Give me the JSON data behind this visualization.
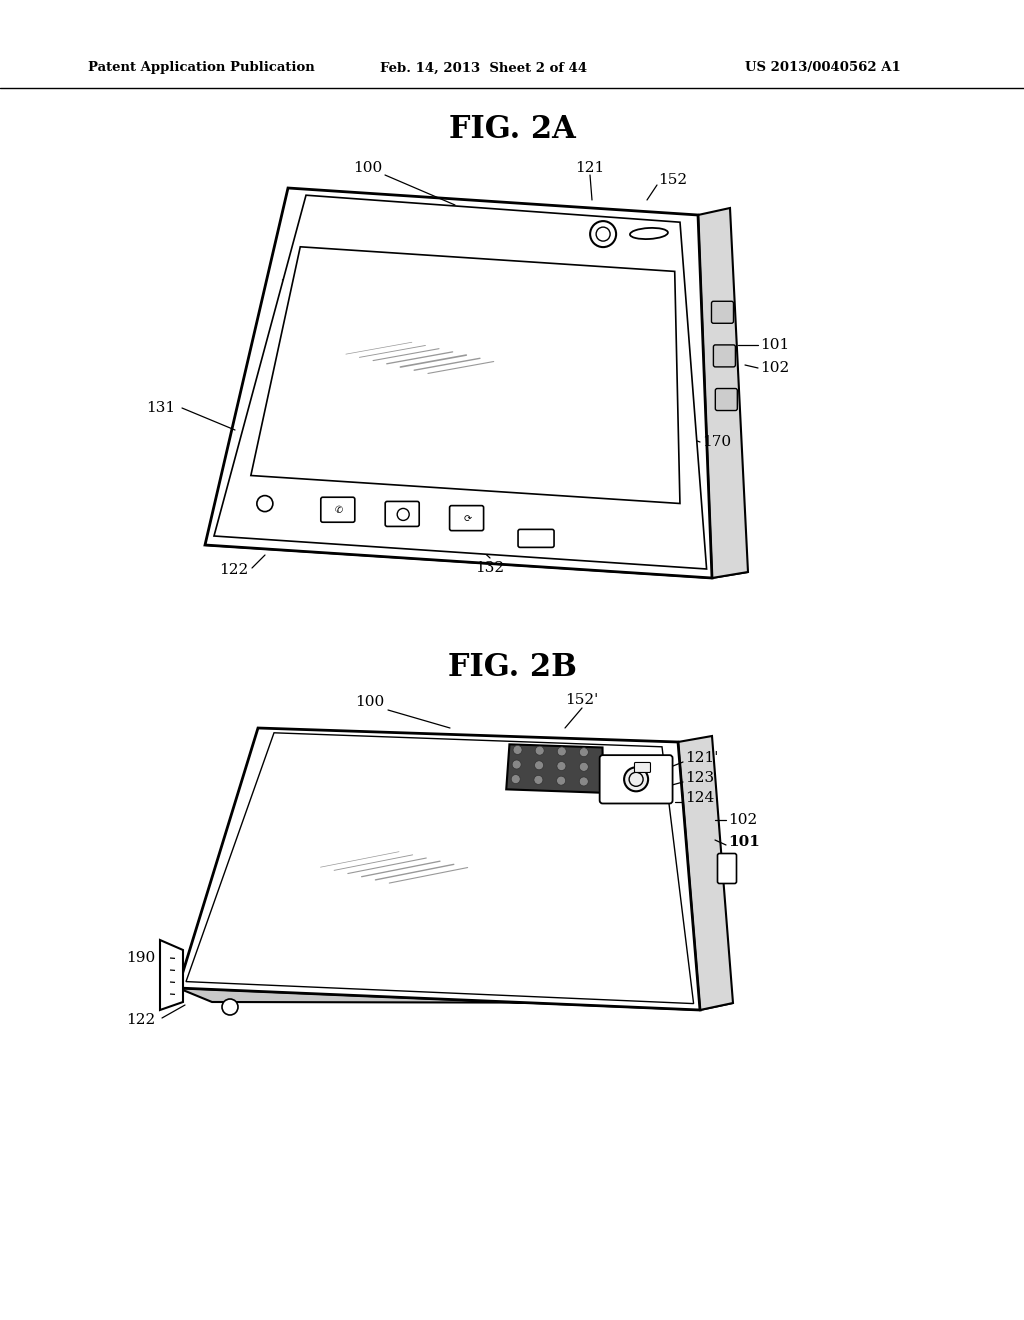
{
  "background_color": "#ffffff",
  "header_left": "Patent Application Publication",
  "header_mid": "Feb. 14, 2013  Sheet 2 of 44",
  "header_right": "US 2013/0040562 A1",
  "fig2a_title": "FIG. 2A",
  "fig2b_title": "FIG. 2B"
}
